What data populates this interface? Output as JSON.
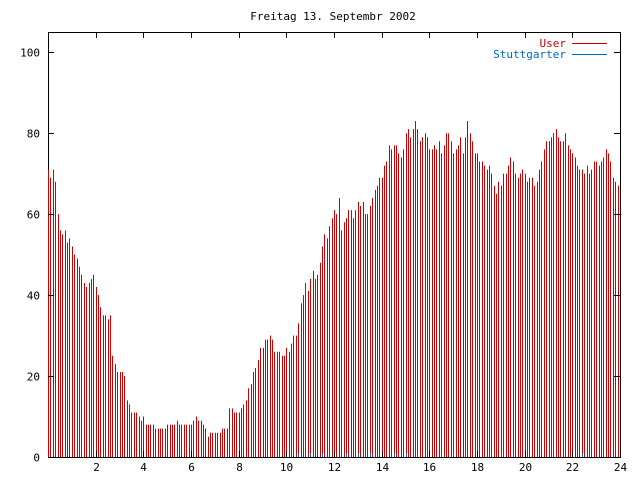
{
  "chart_data": {
    "type": "bar",
    "title": "Freitag 13. Septembr 2002",
    "xlabel": "",
    "ylabel": "",
    "xlim": [
      0,
      24
    ],
    "ylim": [
      0,
      105
    ],
    "x_ticks": [
      "2",
      "4",
      "6",
      "8",
      "10",
      "12",
      "14",
      "16",
      "18",
      "20",
      "22",
      "24"
    ],
    "y_ticks": [
      "0",
      "20",
      "40",
      "60",
      "80",
      "100"
    ],
    "grid": false,
    "legend_position": "top-right",
    "series": [
      {
        "name": "User",
        "color": "#cc0000",
        "x": [
          0.0,
          0.1,
          0.2,
          0.3,
          0.4,
          0.5,
          0.6,
          0.7,
          0.8,
          0.9,
          1.0,
          1.1,
          1.2,
          1.3,
          1.4,
          1.5,
          1.6,
          1.7,
          1.8,
          1.9,
          2.0,
          2.1,
          2.2,
          2.3,
          2.4,
          2.5,
          2.6,
          2.7,
          2.8,
          2.9,
          3.0,
          3.1,
          3.2,
          3.3,
          3.4,
          3.5,
          3.6,
          3.7,
          3.8,
          3.9,
          4.0,
          4.1,
          4.2,
          4.3,
          4.4,
          4.5,
          4.6,
          4.7,
          4.8,
          4.9,
          5.0,
          5.1,
          5.2,
          5.3,
          5.4,
          5.5,
          5.6,
          5.7,
          5.8,
          5.9,
          6.0,
          6.1,
          6.2,
          6.3,
          6.4,
          6.5,
          6.6,
          6.7,
          6.8,
          6.9,
          7.0,
          7.1,
          7.2,
          7.3,
          7.4,
          7.5,
          7.6,
          7.7,
          7.8,
          7.9,
          8.0,
          8.1,
          8.2,
          8.3,
          8.4,
          8.5,
          8.6,
          8.7,
          8.8,
          8.9,
          9.0,
          9.1,
          9.2,
          9.3,
          9.4,
          9.5,
          9.6,
          9.7,
          9.8,
          9.9,
          10.0,
          10.1,
          10.2,
          10.3,
          10.4,
          10.5,
          10.6,
          10.7,
          10.8,
          10.9,
          11.0,
          11.1,
          11.2,
          11.3,
          11.4,
          11.5,
          11.6,
          11.7,
          11.8,
          11.9,
          12.0,
          12.1,
          12.2,
          12.3,
          12.4,
          12.5,
          12.6,
          12.7,
          12.8,
          12.9,
          13.0,
          13.1,
          13.2,
          13.3,
          13.4,
          13.5,
          13.6,
          13.7,
          13.8,
          13.9,
          14.0,
          14.1,
          14.2,
          14.3,
          14.4,
          14.5,
          14.6,
          14.7,
          14.8,
          14.9,
          15.0,
          15.1,
          15.2,
          15.3,
          15.4,
          15.5,
          15.6,
          15.7,
          15.8,
          15.9,
          16.0,
          16.1,
          16.2,
          16.3,
          16.4,
          16.5,
          16.6,
          16.7,
          16.8,
          16.9,
          17.0,
          17.1,
          17.2,
          17.3,
          17.4,
          17.5,
          17.6,
          17.7,
          17.8,
          17.9,
          18.0,
          18.1,
          18.2,
          18.3,
          18.4,
          18.5,
          18.6,
          18.7,
          18.8,
          18.9,
          19.0,
          19.1,
          19.2,
          19.3,
          19.4,
          19.5,
          19.6,
          19.7,
          19.8,
          19.9,
          20.0,
          20.1,
          20.2,
          20.3,
          20.4,
          20.5,
          20.6,
          20.7,
          20.8,
          20.9,
          21.0,
          21.1,
          21.2,
          21.3,
          21.4,
          21.5,
          21.6,
          21.7,
          21.8,
          21.9,
          22.0,
          22.1,
          22.2,
          22.3,
          22.4,
          22.5,
          22.6,
          22.7,
          22.8,
          22.9,
          23.0,
          23.1,
          23.2,
          23.3,
          23.4,
          23.5,
          23.6,
          23.7,
          23.8,
          23.9
        ],
        "values": [
          71,
          69,
          71,
          68,
          60,
          56,
          55,
          56,
          53,
          54,
          52,
          50,
          49,
          47,
          45,
          43,
          42,
          43,
          44,
          45,
          42,
          40,
          37,
          35,
          35,
          34,
          35,
          25,
          23,
          21,
          21,
          21,
          20,
          14,
          13,
          11,
          11,
          11,
          10,
          9,
          10,
          8,
          8,
          8,
          8,
          7,
          7,
          7,
          7,
          7,
          8,
          8,
          8,
          8,
          9,
          8,
          8,
          8,
          8,
          8,
          8,
          9,
          10,
          9,
          9,
          8,
          7,
          5,
          6,
          6,
          6,
          6,
          6,
          7,
          7,
          7,
          12,
          12,
          11,
          11,
          11,
          12,
          13,
          14,
          17,
          18,
          21,
          22,
          24,
          27,
          27,
          29,
          29,
          30,
          29,
          26,
          26,
          26,
          25,
          25,
          27,
          26,
          28,
          30,
          30,
          33,
          38,
          40,
          43,
          41,
          44,
          46,
          44,
          45,
          48,
          52,
          55,
          54,
          57,
          59,
          61,
          60,
          64,
          56,
          58,
          59,
          61,
          61,
          59,
          61,
          63,
          62,
          63,
          60,
          60,
          62,
          64,
          66,
          67,
          69,
          69,
          72,
          73,
          77,
          76,
          77,
          77,
          75,
          74,
          76,
          80,
          81,
          79,
          81,
          83,
          81,
          78,
          79,
          80,
          79,
          76,
          76,
          77,
          76,
          78,
          75,
          77,
          80,
          80,
          78,
          75,
          76,
          77,
          79,
          75,
          79,
          83,
          80,
          78,
          75,
          75,
          73,
          73,
          72,
          71,
          72,
          70,
          67,
          65,
          68,
          67,
          70,
          70,
          72,
          74,
          73,
          70,
          69,
          70,
          71,
          70,
          68,
          69,
          69,
          67,
          68,
          71,
          73,
          76,
          78,
          78,
          79,
          80,
          81,
          79,
          78,
          78,
          80,
          77,
          76,
          75,
          74,
          72,
          71,
          71,
          70,
          72,
          70,
          71,
          73,
          73,
          72,
          73,
          74,
          76,
          75,
          73,
          69,
          68,
          67
        ]
      },
      {
        "name": "Stuttgarter",
        "color": "#0066cc",
        "x": [
          10.5,
          11.0,
          11.5,
          12.0,
          12.5,
          13.0,
          13.5,
          14.0,
          14.5,
          15.0,
          15.5,
          16.0,
          16.5,
          17.0,
          17.5,
          18.0,
          18.5,
          19.0,
          19.5,
          20.0,
          22.4
        ],
        "values": [
          1,
          1,
          1,
          1,
          1,
          1,
          1,
          1,
          1,
          1,
          1,
          1,
          1,
          1,
          1,
          1,
          1,
          1,
          1,
          1,
          1
        ]
      }
    ]
  }
}
